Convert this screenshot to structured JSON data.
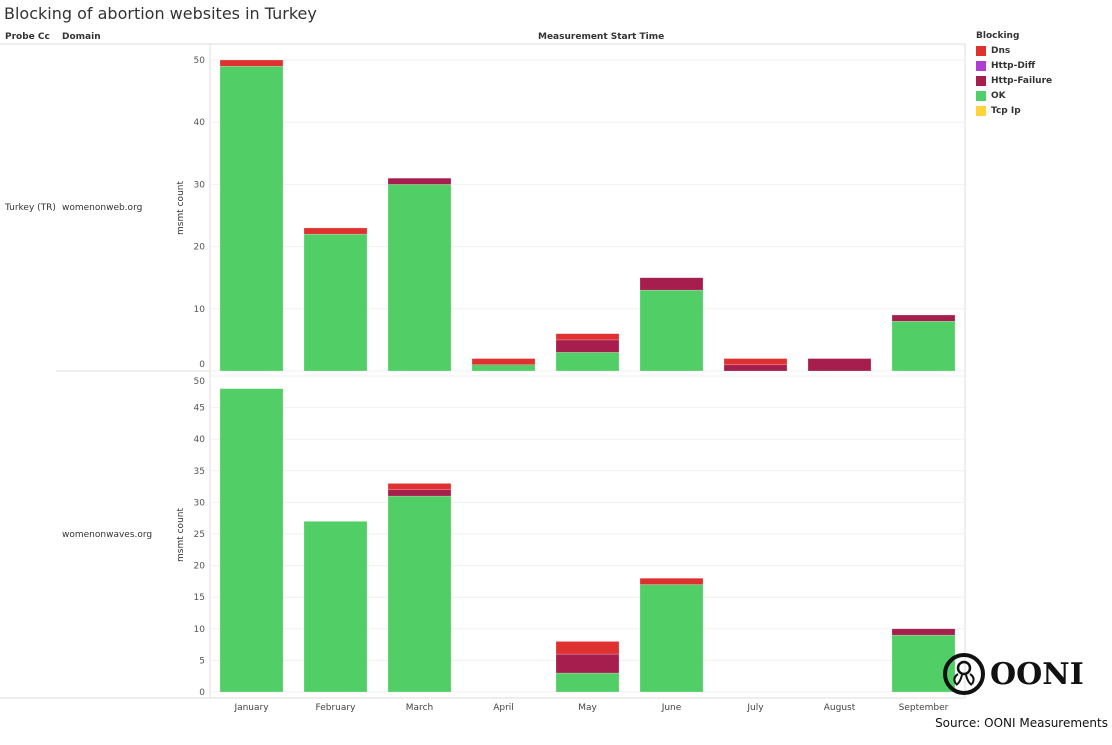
{
  "title": "Blocking of abortion websites in Turkey",
  "headers": {
    "probe_cc": "Probe Cc",
    "domain": "Domain",
    "column": "Measurement Start Time"
  },
  "probe_cc_value": "Turkey (TR)",
  "source": "Source: OONI Measurements",
  "logo_text": "OONI",
  "legend": {
    "title": "Blocking",
    "items": [
      {
        "label": "Dns",
        "color": "#e03131"
      },
      {
        "label": "Http-Diff",
        "color": "#b03cd1"
      },
      {
        "label": "Http-Failure",
        "color": "#a61e4d"
      },
      {
        "label": "OK",
        "color": "#51cf66"
      },
      {
        "label": "Tcp Ip",
        "color": "#ffd43b"
      }
    ]
  },
  "chart_data": [
    {
      "type": "bar",
      "stacked": true,
      "domain": "womenonweb.org",
      "ylabel": "msmt count",
      "ylim": [
        0,
        50
      ],
      "yticks": [
        0,
        10,
        20,
        30,
        40,
        50
      ],
      "categories": [
        "January",
        "February",
        "March",
        "April",
        "May",
        "June",
        "July",
        "August",
        "September"
      ],
      "series": [
        {
          "name": "OK",
          "values": [
            49,
            22,
            30,
            1,
            3,
            13,
            0,
            0,
            8
          ]
        },
        {
          "name": "Http-Failure",
          "values": [
            0,
            0,
            1,
            0,
            2,
            2,
            1,
            2,
            1
          ]
        },
        {
          "name": "Http-Diff",
          "values": [
            0,
            0,
            0,
            0,
            0,
            0,
            0,
            0,
            0
          ]
        },
        {
          "name": "Dns",
          "values": [
            1,
            1,
            0,
            1,
            1,
            0,
            1,
            0,
            0
          ]
        },
        {
          "name": "Tcp Ip",
          "values": [
            0,
            0,
            0,
            0,
            0,
            0,
            0,
            0,
            0
          ]
        }
      ]
    },
    {
      "type": "bar",
      "stacked": true,
      "domain": "womenonwaves.org",
      "ylabel": "msmt count",
      "ylim": [
        0,
        50
      ],
      "yticks": [
        0,
        5,
        10,
        15,
        20,
        25,
        30,
        35,
        40,
        45,
        50
      ],
      "categories": [
        "January",
        "February",
        "March",
        "April",
        "May",
        "June",
        "July",
        "August",
        "September"
      ],
      "series": [
        {
          "name": "OK",
          "values": [
            48,
            27,
            31,
            0,
            3,
            17,
            0,
            0,
            9
          ]
        },
        {
          "name": "Http-Failure",
          "values": [
            0,
            0,
            1,
            0,
            3,
            0,
            0,
            0,
            1
          ]
        },
        {
          "name": "Http-Diff",
          "values": [
            0,
            0,
            0,
            0,
            0,
            0,
            0,
            0,
            0
          ]
        },
        {
          "name": "Dns",
          "values": [
            0,
            0,
            1,
            0,
            2,
            1,
            0,
            0,
            0
          ]
        },
        {
          "name": "Tcp Ip",
          "values": [
            0,
            0,
            0,
            0,
            0,
            0,
            0,
            0,
            0
          ]
        }
      ]
    }
  ]
}
